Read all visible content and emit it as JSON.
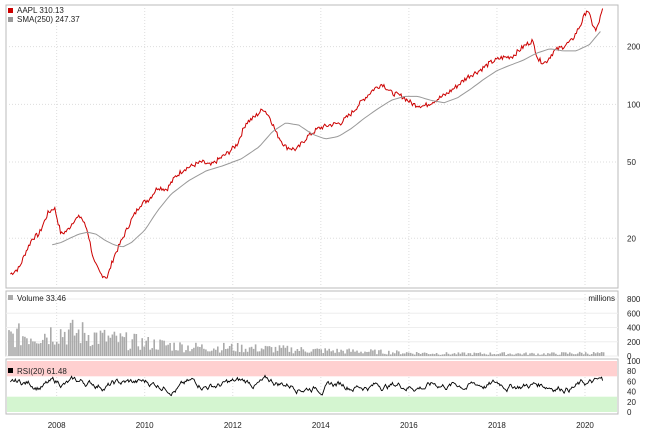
{
  "chart_data": [
    {
      "type": "line",
      "panel": "price",
      "scale": "log",
      "legend": [
        {
          "label": "AAPL 310.13",
          "color": "#cc0000"
        },
        {
          "label": "SMA(250) 247.37",
          "color": "#999999"
        }
      ],
      "y_ticks": [
        20,
        50,
        100,
        200
      ],
      "ylim": [
        11,
        330
      ],
      "xlim": [
        2006.85,
        2020.75
      ],
      "grid": true,
      "series": [
        {
          "color": "#cc0000",
          "x": [
            2006.95,
            2007.05,
            2007.15,
            2007.3,
            2007.45,
            2007.6,
            2007.8,
            2007.95,
            2008.1,
            2008.25,
            2008.4,
            2008.55,
            2008.7,
            2008.85,
            2009.0,
            2009.15,
            2009.3,
            2009.5,
            2009.7,
            2009.9,
            2010.1,
            2010.3,
            2010.5,
            2010.7,
            2010.9,
            2011.1,
            2011.3,
            2011.5,
            2011.7,
            2011.9,
            2012.1,
            2012.3,
            2012.5,
            2012.7,
            2012.85,
            2013.0,
            2013.2,
            2013.45,
            2013.7,
            2013.95,
            2014.2,
            2014.45,
            2014.7,
            2014.95,
            2015.2,
            2015.4,
            2015.6,
            2015.85,
            2016.1,
            2016.35,
            2016.6,
            2016.85,
            2017.1,
            2017.35,
            2017.6,
            2017.85,
            2018.1,
            2018.35,
            2018.6,
            2018.8,
            2018.95,
            2019.1,
            2019.3,
            2019.5,
            2019.7,
            2019.9,
            2020.05,
            2020.15,
            2020.25,
            2020.4
          ],
          "values": [
            13,
            13.5,
            14,
            17,
            20,
            21,
            27,
            29,
            21,
            22,
            25,
            26,
            22,
            15,
            13,
            12.5,
            16,
            20,
            25,
            30,
            32,
            37,
            36,
            42,
            46,
            48,
            50,
            48,
            52,
            56,
            62,
            80,
            86,
            95,
            85,
            70,
            60,
            58,
            68,
            75,
            78,
            80,
            90,
            105,
            120,
            128,
            115,
            110,
            100,
            98,
            105,
            113,
            125,
            140,
            150,
            165,
            175,
            178,
            200,
            215,
            170,
            165,
            190,
            200,
            215,
            260,
            315,
            270,
            240,
            310
          ]
        },
        {
          "color": "#999999",
          "x": [
            2007.9,
            2008.1,
            2008.3,
            2008.5,
            2008.7,
            2008.9,
            2009.1,
            2009.3,
            2009.5,
            2009.7,
            2010.0,
            2010.3,
            2010.6,
            2011.0,
            2011.4,
            2011.8,
            2012.2,
            2012.6,
            2012.9,
            2013.2,
            2013.5,
            2013.8,
            2014.1,
            2014.4,
            2014.7,
            2015.0,
            2015.3,
            2015.6,
            2015.9,
            2016.2,
            2016.5,
            2016.8,
            2017.1,
            2017.4,
            2017.7,
            2018.0,
            2018.3,
            2018.6,
            2018.9,
            2019.2,
            2019.5,
            2019.8,
            2020.1,
            2020.35
          ],
          "values": [
            18.5,
            19,
            20,
            21,
            21.5,
            21,
            19.5,
            18.5,
            18,
            19,
            22,
            28,
            34,
            40,
            45,
            48,
            52,
            60,
            72,
            80,
            78,
            70,
            66,
            68,
            75,
            85,
            95,
            105,
            110,
            110,
            105,
            102,
            108,
            120,
            135,
            150,
            160,
            170,
            185,
            195,
            190,
            190,
            205,
            240
          ]
        }
      ]
    },
    {
      "type": "bar",
      "panel": "volume",
      "legend": [
        {
          "label": "Volume 33.46",
          "color": "#aaaaaa"
        }
      ],
      "unit_label": "millions",
      "y_ticks": [
        0,
        200,
        400,
        600,
        800
      ],
      "ylim": [
        0,
        800
      ],
      "x_anchor": [
        2006.9,
        2007.5,
        2008.0,
        2008.6,
        2009.2,
        2010.0,
        2011.0,
        2012.0,
        2013.0,
        2014.0,
        2015.0,
        2016.0,
        2017.0,
        2018.0,
        2019.0,
        2020.0,
        2020.45
      ],
      "level_anchor": [
        310,
        330,
        380,
        350,
        260,
        200,
        140,
        130,
        110,
        85,
        70,
        50,
        35,
        38,
        34,
        45,
        40
      ]
    },
    {
      "type": "line",
      "panel": "rsi",
      "legend": [
        {
          "label": "RSI(20) 61.48",
          "color": "#000000"
        }
      ],
      "y_ticks": [
        0,
        20,
        40,
        60,
        80,
        100
      ],
      "ylim": [
        0,
        100
      ],
      "bands": [
        {
          "from": 70,
          "to": 100,
          "color": "#ffd0d0"
        },
        {
          "from": 0,
          "to": 30,
          "color": "#d4f5d0"
        }
      ],
      "last_value": 61.48
    }
  ],
  "x_axis": {
    "tick_values": [
      2008,
      2010,
      2012,
      2014,
      2016,
      2018,
      2020
    ],
    "tick_labels": [
      "2008",
      "2010",
      "2012",
      "2014",
      "2016",
      "2018",
      "2020"
    ]
  }
}
